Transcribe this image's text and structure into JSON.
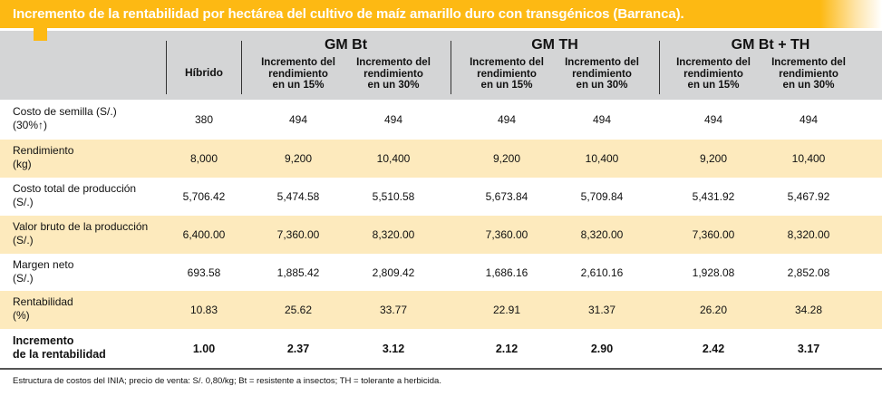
{
  "title": "Incremento de la rentabilidad por hectárea del cultivo de maíz amarillo duro con transgénicos (Barranca).",
  "colors": {
    "accent": "#FDB913",
    "header_gray": "#D4D5D6",
    "row_beige": "#FDEABD"
  },
  "header": {
    "hibrido": "Híbrido",
    "groups": [
      {
        "title": "GM Bt",
        "subs": [
          {
            "l1": "Incremento del",
            "l2": "rendimiento",
            "l3": "en un 15%"
          },
          {
            "l1": "Incremento del",
            "l2": "rendimiento",
            "l3": "en un 30%"
          }
        ]
      },
      {
        "title": "GM TH",
        "subs": [
          {
            "l1": "Incremento del",
            "l2": "rendimiento",
            "l3": "en un 15%"
          },
          {
            "l1": "Incremento del",
            "l2": "rendimiento",
            "l3": "en un 30%"
          }
        ]
      },
      {
        "title": "GM Bt + TH",
        "subs": [
          {
            "l1": "Incremento del",
            "l2": "rendimiento",
            "l3": "en un 15%"
          },
          {
            "l1": "Incremento del",
            "l2": "rendimiento",
            "l3": "en un 30%"
          }
        ]
      }
    ]
  },
  "rows": [
    {
      "l1": "Costo de semilla (S/.)",
      "l2": "(30%↑)",
      "values": [
        "380",
        "494",
        "494",
        "494",
        "494",
        "494",
        "494"
      ]
    },
    {
      "l1": "Rendimiento",
      "l2": "(kg)",
      "values": [
        "8,000",
        "9,200",
        "10,400",
        "9,200",
        "10,400",
        "9,200",
        "10,400"
      ]
    },
    {
      "l1": "Costo total de producción",
      "l2": "(S/.)",
      "values": [
        "5,706.42",
        "5,474.58",
        "5,510.58",
        "5,673.84",
        "5,709.84",
        "5,431.92",
        "5,467.92"
      ]
    },
    {
      "l1": "Valor bruto de la producción",
      "l2": "(S/.)",
      "values": [
        "6,400.00",
        "7,360.00",
        "8,320.00",
        "7,360.00",
        "8,320.00",
        "7,360.00",
        "8,320.00"
      ]
    },
    {
      "l1": "Margen neto",
      "l2": "(S/.)",
      "values": [
        "693.58",
        "1,885.42",
        "2,809.42",
        "1,686.16",
        "2,610.16",
        "1,928.08",
        "2,852.08"
      ]
    },
    {
      "l1": "Rentabilidad",
      "l2": "(%)",
      "values": [
        "10.83",
        "25.62",
        "33.77",
        "22.91",
        "31.37",
        "26.20",
        "34.28"
      ]
    },
    {
      "l1": "Incremento",
      "l2": "de la rentabilidad",
      "values": [
        "1.00",
        "2.37",
        "3.12",
        "2.12",
        "2.90",
        "2.42",
        "3.17"
      ]
    }
  ],
  "footnote": "Estructura de costos del INIA; precio de venta: S/. 0,80/kg; Bt = resistente a insectos; TH = tolerante a herbicida."
}
